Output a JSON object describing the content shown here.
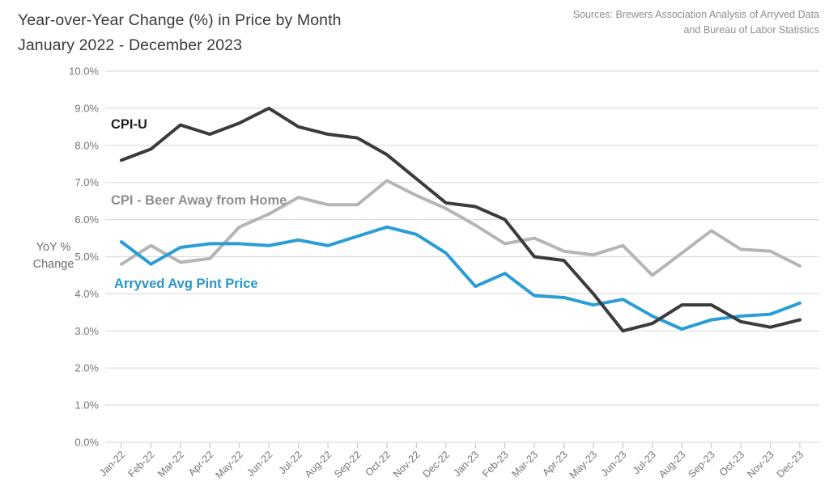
{
  "header": {
    "title_line1": "Year-over-Year Change (%) in Price by Month",
    "title_line2": "January 2022 - December 2023",
    "sources_line1": "Sources: Brewers Association Analysis of Arryved Data",
    "sources_line2": "and Bureau of Labor Statistics"
  },
  "y_axis": {
    "label_line1": "YoY %",
    "label_line2": "Change"
  },
  "chart_data": {
    "type": "line",
    "title": "Year-over-Year Change (%) in Price by Month January 2022 - December 2023",
    "xlabel": "",
    "ylabel": "YoY % Change",
    "ylim": [
      0,
      10
    ],
    "grid": true,
    "legend_position": "inline-labels-on-chart",
    "ytick_values": [
      0,
      1,
      2,
      3,
      4,
      5,
      6,
      7,
      8,
      9,
      10
    ],
    "ytick_labels": [
      "0.0%",
      "1.0%",
      "2.0%",
      "3.0%",
      "4.0%",
      "5.0%",
      "6.0%",
      "7.0%",
      "8.0%",
      "9.0%",
      "10.0%"
    ],
    "categories": [
      "Jan-22",
      "Feb-22",
      "Mar-22",
      "Apr-22",
      "May-22",
      "Jun-22",
      "Jul-22",
      "Aug-22",
      "Sep-22",
      "Oct-22",
      "Nov-22",
      "Dec-22",
      "Jan-23",
      "Feb-23",
      "Mar-23",
      "Apr-23",
      "May-23",
      "Jun-23",
      "Jul-23",
      "Aug-23",
      "Sep-23",
      "Oct-23",
      "Nov-23",
      "Dec-23"
    ],
    "series": [
      {
        "name": "CPI - Beer Away from Home",
        "line_color": "#b5b5b5",
        "label_color": "#8f8f8f",
        "values": [
          4.8,
          5.3,
          4.85,
          4.95,
          5.8,
          6.15,
          6.6,
          6.4,
          6.4,
          7.05,
          6.65,
          6.3,
          5.85,
          5.35,
          5.5,
          5.15,
          5.05,
          5.3,
          4.5,
          5.1,
          5.7,
          5.2,
          5.15,
          4.75
        ]
      },
      {
        "name": "Arryved Avg Pint Price",
        "line_color": "#2b9dd6",
        "label_color": "#2795cd",
        "values": [
          5.4,
          4.8,
          5.25,
          5.35,
          5.35,
          5.3,
          5.45,
          5.3,
          5.55,
          5.8,
          5.6,
          5.1,
          4.2,
          4.55,
          3.95,
          3.9,
          3.7,
          3.85,
          3.4,
          3.05,
          3.3,
          3.4,
          3.45,
          3.75
        ]
      },
      {
        "name": "CPI-U",
        "line_color": "#3b3b3b",
        "label_color": "#1e1e1e",
        "values": [
          7.6,
          7.9,
          8.55,
          8.3,
          8.6,
          9.0,
          8.5,
          8.3,
          8.2,
          7.75,
          7.1,
          6.45,
          6.35,
          6.0,
          5.0,
          4.9,
          4.0,
          3.0,
          3.2,
          3.7,
          3.7,
          3.25,
          3.1,
          3.3
        ]
      }
    ],
    "colors": {
      "gridline": "#dcdcdc",
      "axis_tick": "#c6c6c6",
      "tick_text": "#757575"
    }
  }
}
